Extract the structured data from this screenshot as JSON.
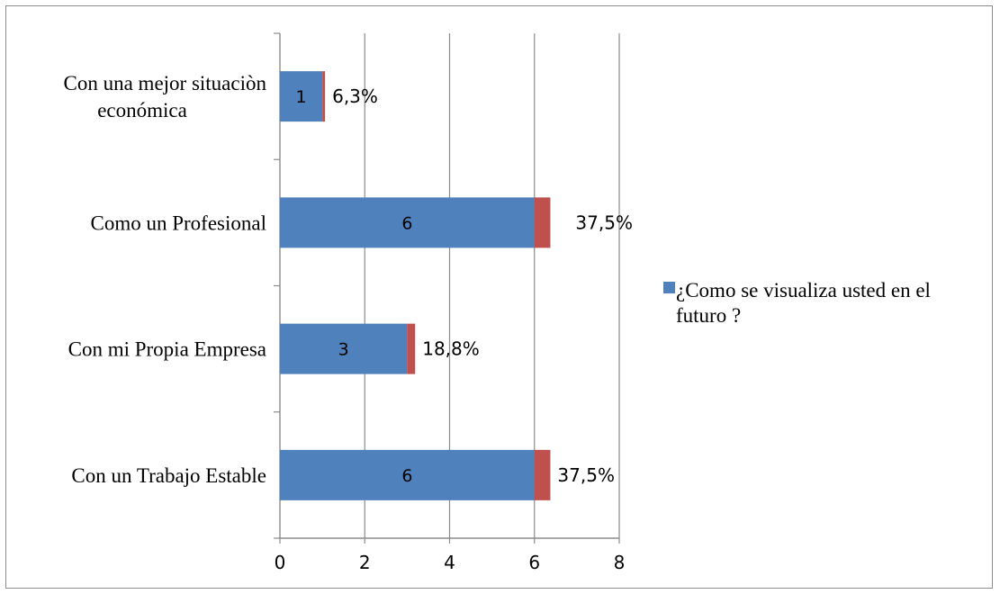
{
  "chart_data": {
    "type": "bar",
    "orientation": "horizontal",
    "stacked": true,
    "categories": [
      [
        "Con una mejor situaciòn",
        "económica"
      ],
      [
        "Como un Profesional"
      ],
      [
        "Con mi Propia Empresa"
      ],
      [
        "Con un Trabajo Estable"
      ]
    ],
    "series": [
      {
        "name": "¿Como se visualiza usted  en el futuro ?",
        "color": "#4f81bd",
        "values": [
          1,
          6,
          3,
          6
        ],
        "labels": [
          "1",
          "6",
          "3",
          "6"
        ]
      },
      {
        "color": "#c0504d",
        "values": [
          0.063,
          0.375,
          0.188,
          0.375
        ],
        "labels": [
          "6,3%",
          "37,5%",
          "18,8%",
          "37,5%"
        ]
      }
    ],
    "x_ticks": [
      "0",
      "2",
      "4",
      "6",
      "8"
    ],
    "xlim": [
      0,
      8
    ],
    "grid": true,
    "legend": {
      "position": "right",
      "lines": [
        "¿Como se visualiza usted  en el",
        "futuro ?"
      ]
    },
    "title": "",
    "xlabel": "",
    "ylabel": ""
  }
}
